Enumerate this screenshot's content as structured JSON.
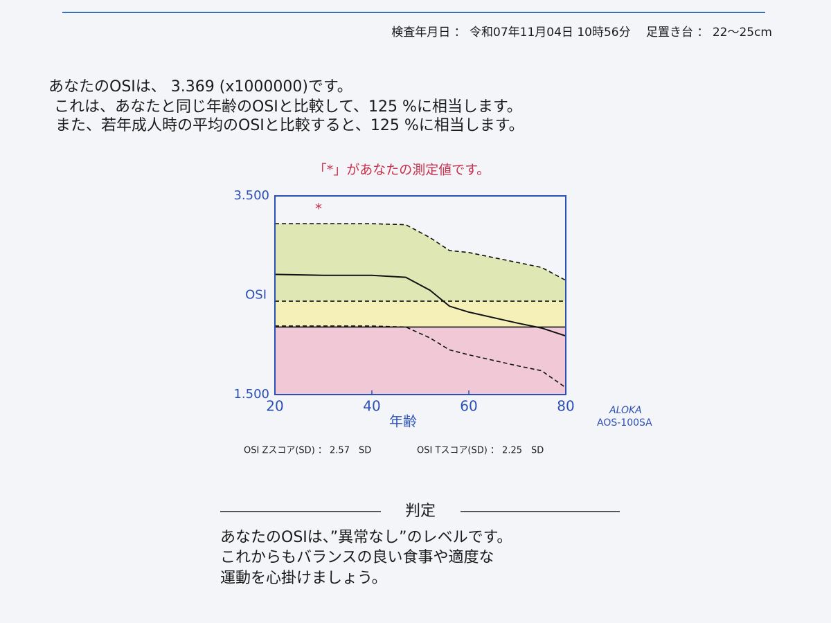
{
  "header": {
    "text": "検査年月日 ： 令和07年11月04日 10時56分　 足置き台 ： 22～25cm"
  },
  "result": {
    "lines": [
      "あなたのOSIは、 3.369 (x1000000)です。",
      "これは、あなたと同じ年齢のOSIと比較して、125 %に相当します。",
      "また、若年成人時の平均のOSIと比較すると、125 %に相当します。"
    ]
  },
  "chart_data": {
    "type": "line",
    "title": "「*」があなたの測定値です。",
    "x_label": "年齢",
    "y_label": "OSI",
    "x": [
      20,
      30,
      40,
      47,
      52,
      56,
      60,
      70,
      75,
      80
    ],
    "series": [
      {
        "color": "#111111",
        "dash": true,
        "values": [
          3.22,
          3.22,
          3.22,
          3.21,
          3.08,
          2.95,
          2.93,
          2.83,
          2.78,
          2.65
        ]
      },
      {
        "color": "#111111",
        "dash": false,
        "values": [
          2.71,
          2.7,
          2.7,
          2.68,
          2.55,
          2.39,
          2.33,
          2.22,
          2.17,
          2.09
        ]
      },
      {
        "color": "#111111",
        "dash": true,
        "values": [
          2.19,
          2.19,
          2.19,
          2.18,
          2.07,
          1.95,
          1.9,
          1.79,
          1.74,
          1.57
        ]
      }
    ],
    "thresholds": [
      {
        "value": 2.44,
        "dash": true
      },
      {
        "value": 2.18,
        "dash": false
      }
    ],
    "band_colors": [
      "#dfe8b4",
      "#f4f0b8",
      "#f0c8d6"
    ],
    "point": {
      "x": 29,
      "y": 3.36,
      "label": "*",
      "color": "#c8304e"
    },
    "xlim": [
      20,
      80
    ],
    "xticks": [
      20,
      40,
      60,
      80
    ],
    "ylim": [
      1.5,
      3.5
    ],
    "yticks": [
      {
        "value": 1.5,
        "label": "1.500"
      },
      {
        "value": 3.5,
        "label": "3.500"
      }
    ],
    "axis_color": "#2a4fb5",
    "title_color": "#c8304e"
  },
  "brand": {
    "lines": [
      "ALOKA",
      "AOS-100SA"
    ]
  },
  "scores": [
    "OSI Zスコア(SD) ： 2.57　SD",
    "OSI Tスコア(SD) ： 2.25　SD"
  ],
  "judgment": {
    "heading": "判定",
    "lines": [
      "あなたのOSIは、”異常なし”のレベルです。",
      "これからもバランスの良い食事や適度な",
      "運動を心掛けましょう。"
    ]
  }
}
